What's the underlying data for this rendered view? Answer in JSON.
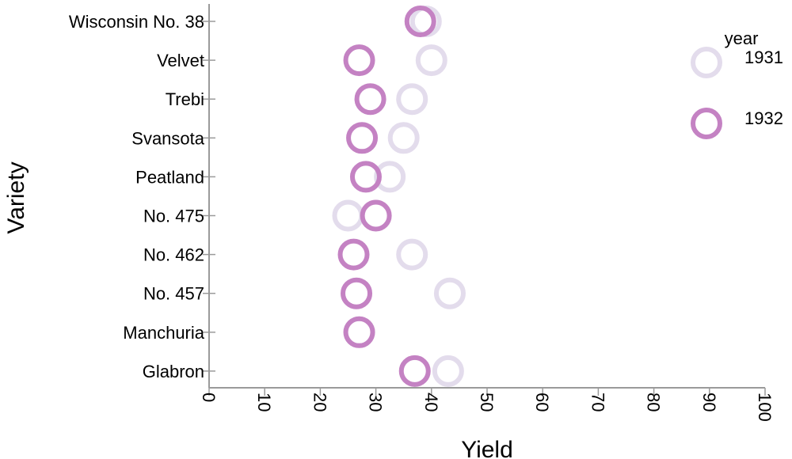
{
  "chart_data": {
    "type": "scatter",
    "xlabel": "Yield",
    "ylabel": "Variety",
    "xlim": [
      0,
      100
    ],
    "xticks": [
      0,
      10,
      20,
      30,
      40,
      50,
      60,
      70,
      80,
      90,
      100
    ],
    "categories": [
      "Wisconsin No. 38",
      "Velvet",
      "Trebi",
      "Svansota",
      "Peatland",
      "No. 475",
      "No. 462",
      "No. 457",
      "Manchuria",
      "Glabron"
    ],
    "legend": {
      "title": "year",
      "position": "top-right"
    },
    "grid": false,
    "series": [
      {
        "name": "1931",
        "color": "#e3dcec",
        "values": [
          39.0,
          40.0,
          36.5,
          35.0,
          32.5,
          25.0,
          36.5,
          43.3,
          27.0,
          43.0
        ]
      },
      {
        "name": "1932",
        "color": "#c482c3",
        "values": [
          38.0,
          27.0,
          29.0,
          27.5,
          28.2,
          30.0,
          26.0,
          26.5,
          27.0,
          37.0
        ]
      }
    ]
  }
}
